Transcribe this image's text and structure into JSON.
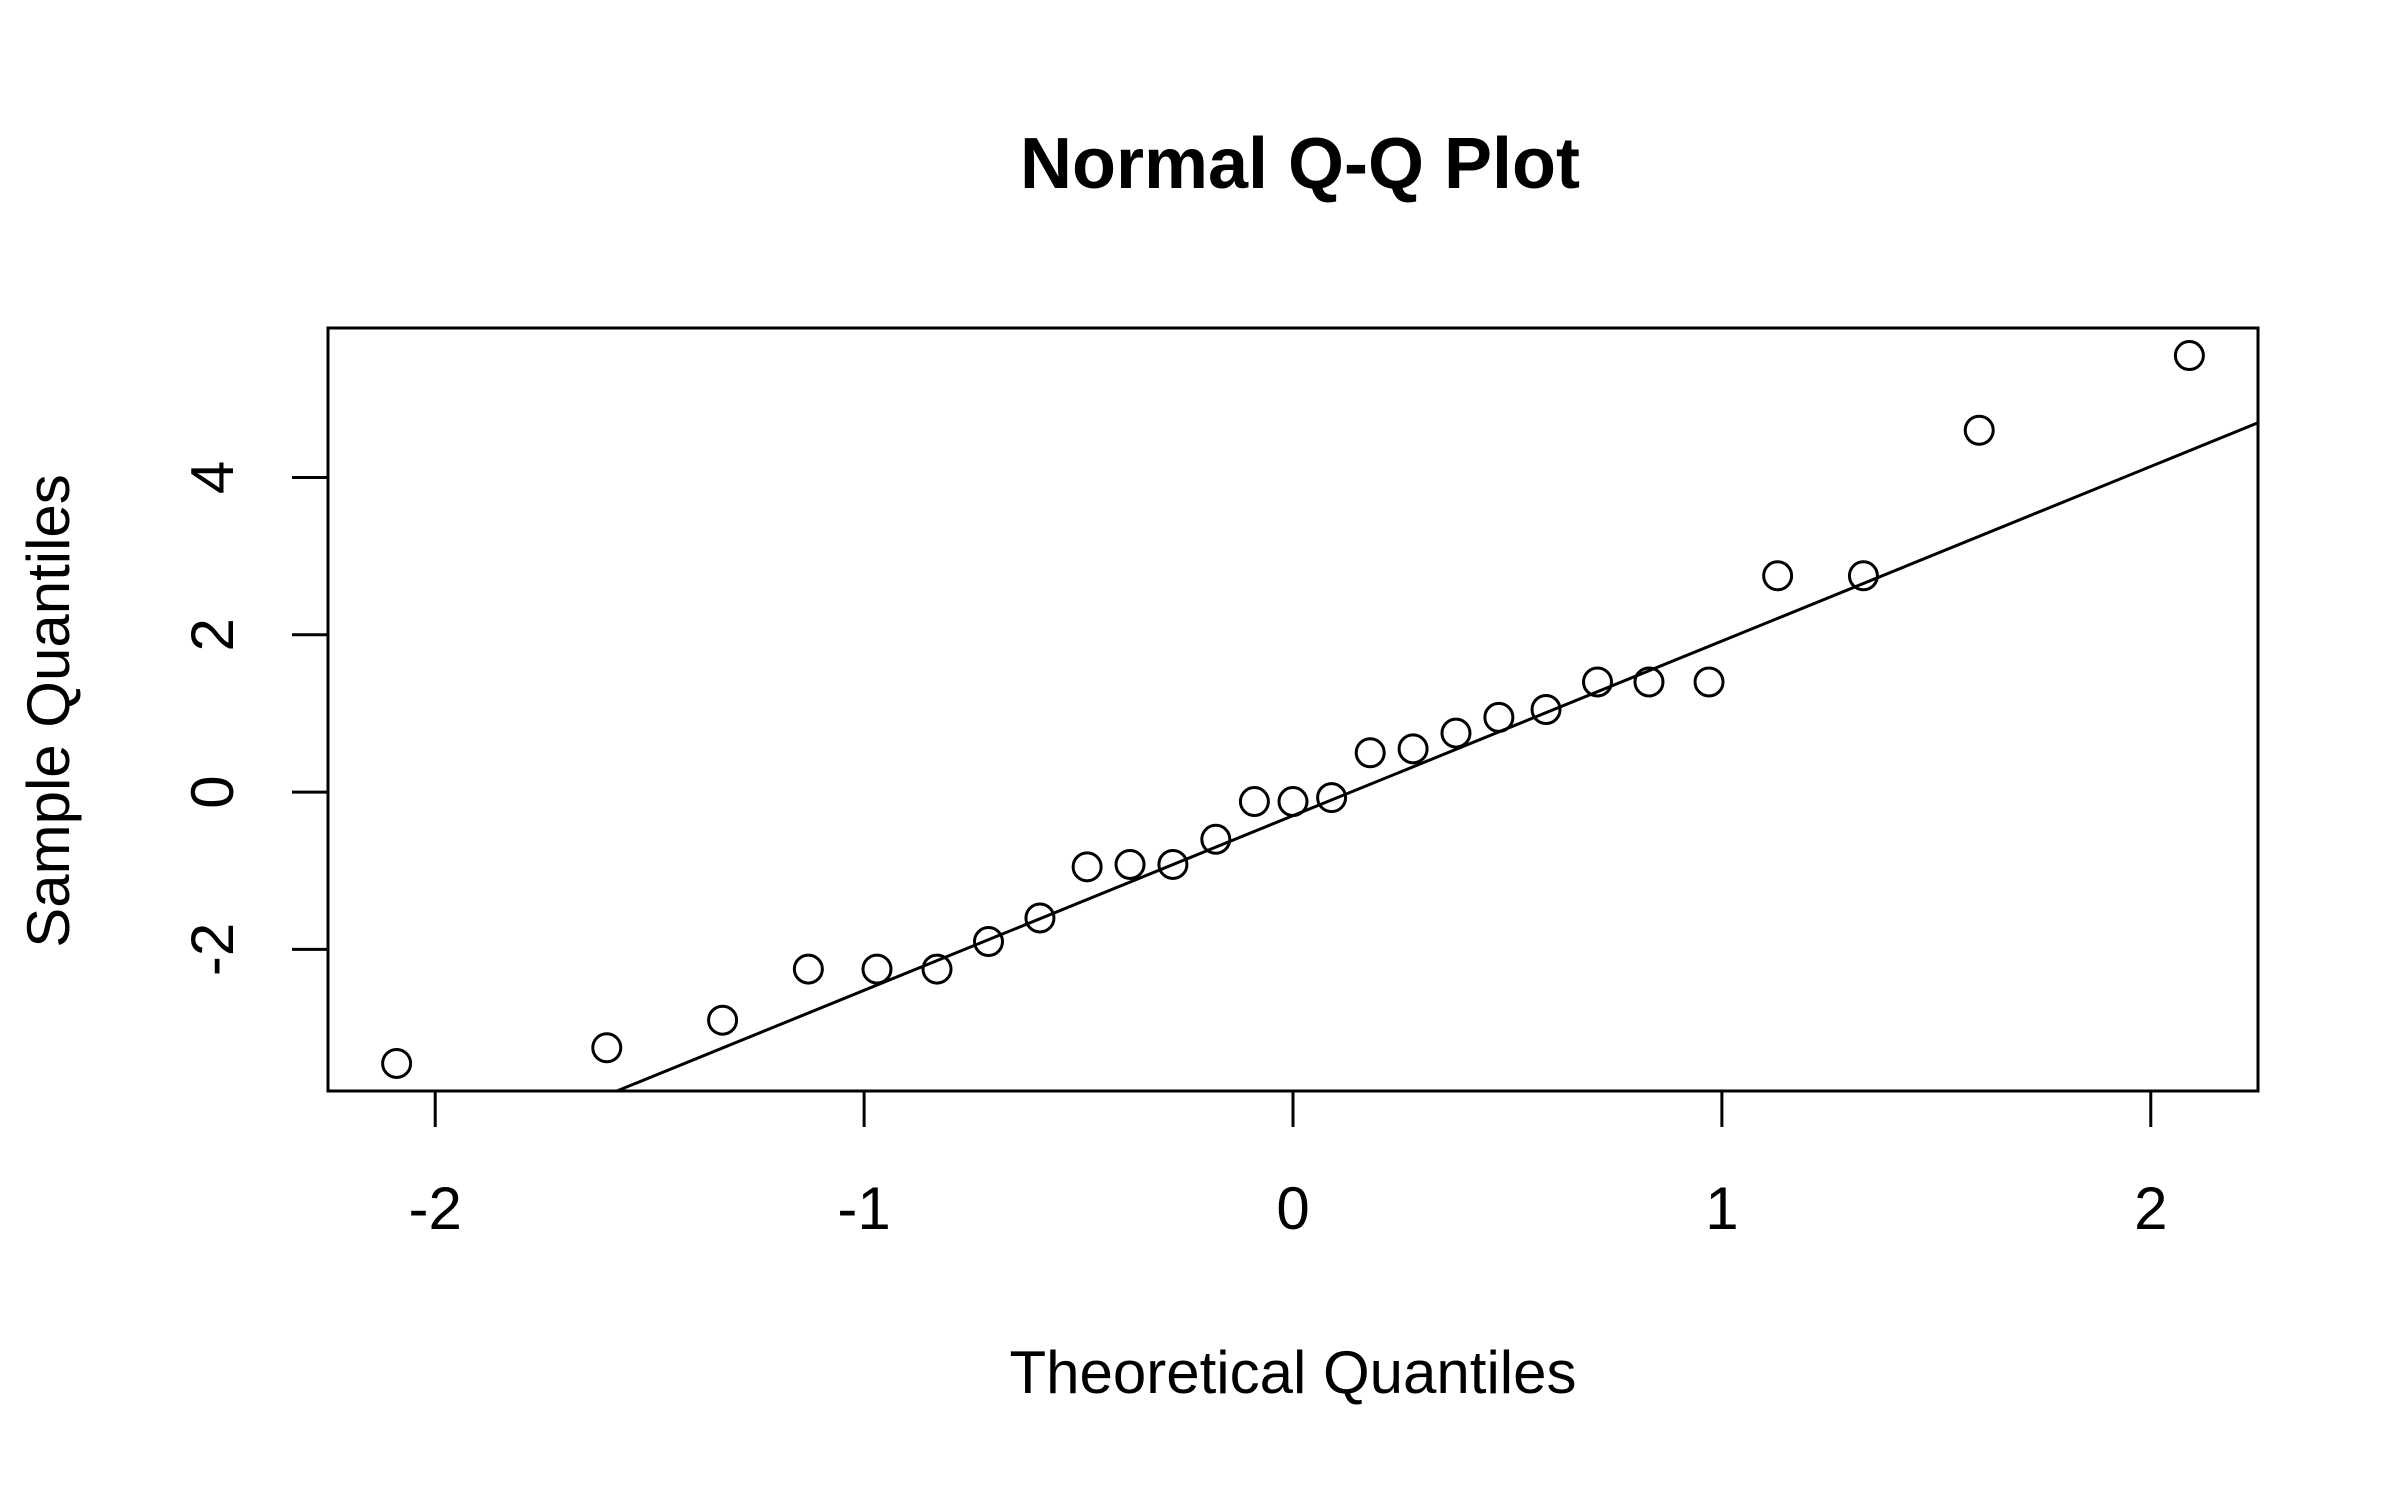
{
  "chart_data": {
    "type": "scatter",
    "title": "Normal Q-Q Plot",
    "xlabel": "Theoretical Quantiles",
    "ylabel": "Sample Quantiles",
    "xlim": [
      -2.25,
      2.25
    ],
    "ylim": [
      -3.8,
      5.9
    ],
    "xticks": [
      -2,
      -1,
      0,
      1,
      2
    ],
    "yticks": [
      -2,
      0,
      2,
      4
    ],
    "xtick_labels": [
      "-2",
      "-1",
      "0",
      "1",
      "2"
    ],
    "ytick_labels": [
      "-2",
      "0",
      "2",
      "4"
    ],
    "grid": false,
    "points": {
      "x": [
        -2.09,
        -1.6,
        -1.33,
        -1.13,
        -0.97,
        -0.83,
        -0.71,
        -0.59,
        -0.48,
        -0.38,
        -0.28,
        -0.18,
        -0.09,
        0.0,
        0.09,
        0.18,
        0.28,
        0.38,
        0.48,
        0.59,
        0.71,
        0.83,
        0.97,
        1.13,
        1.33,
        1.6,
        2.09
      ],
      "y": [
        -3.45,
        -3.25,
        -2.9,
        -2.25,
        -2.25,
        -2.25,
        -1.9,
        -1.6,
        -0.95,
        -0.92,
        -0.92,
        -0.6,
        -0.12,
        -0.12,
        -0.07,
        0.5,
        0.55,
        0.75,
        0.95,
        1.05,
        1.4,
        1.4,
        1.4,
        2.75,
        2.75,
        4.6,
        5.55
      ]
    },
    "reference_line": {
      "intercept": -0.3,
      "slope": 2.22
    }
  }
}
